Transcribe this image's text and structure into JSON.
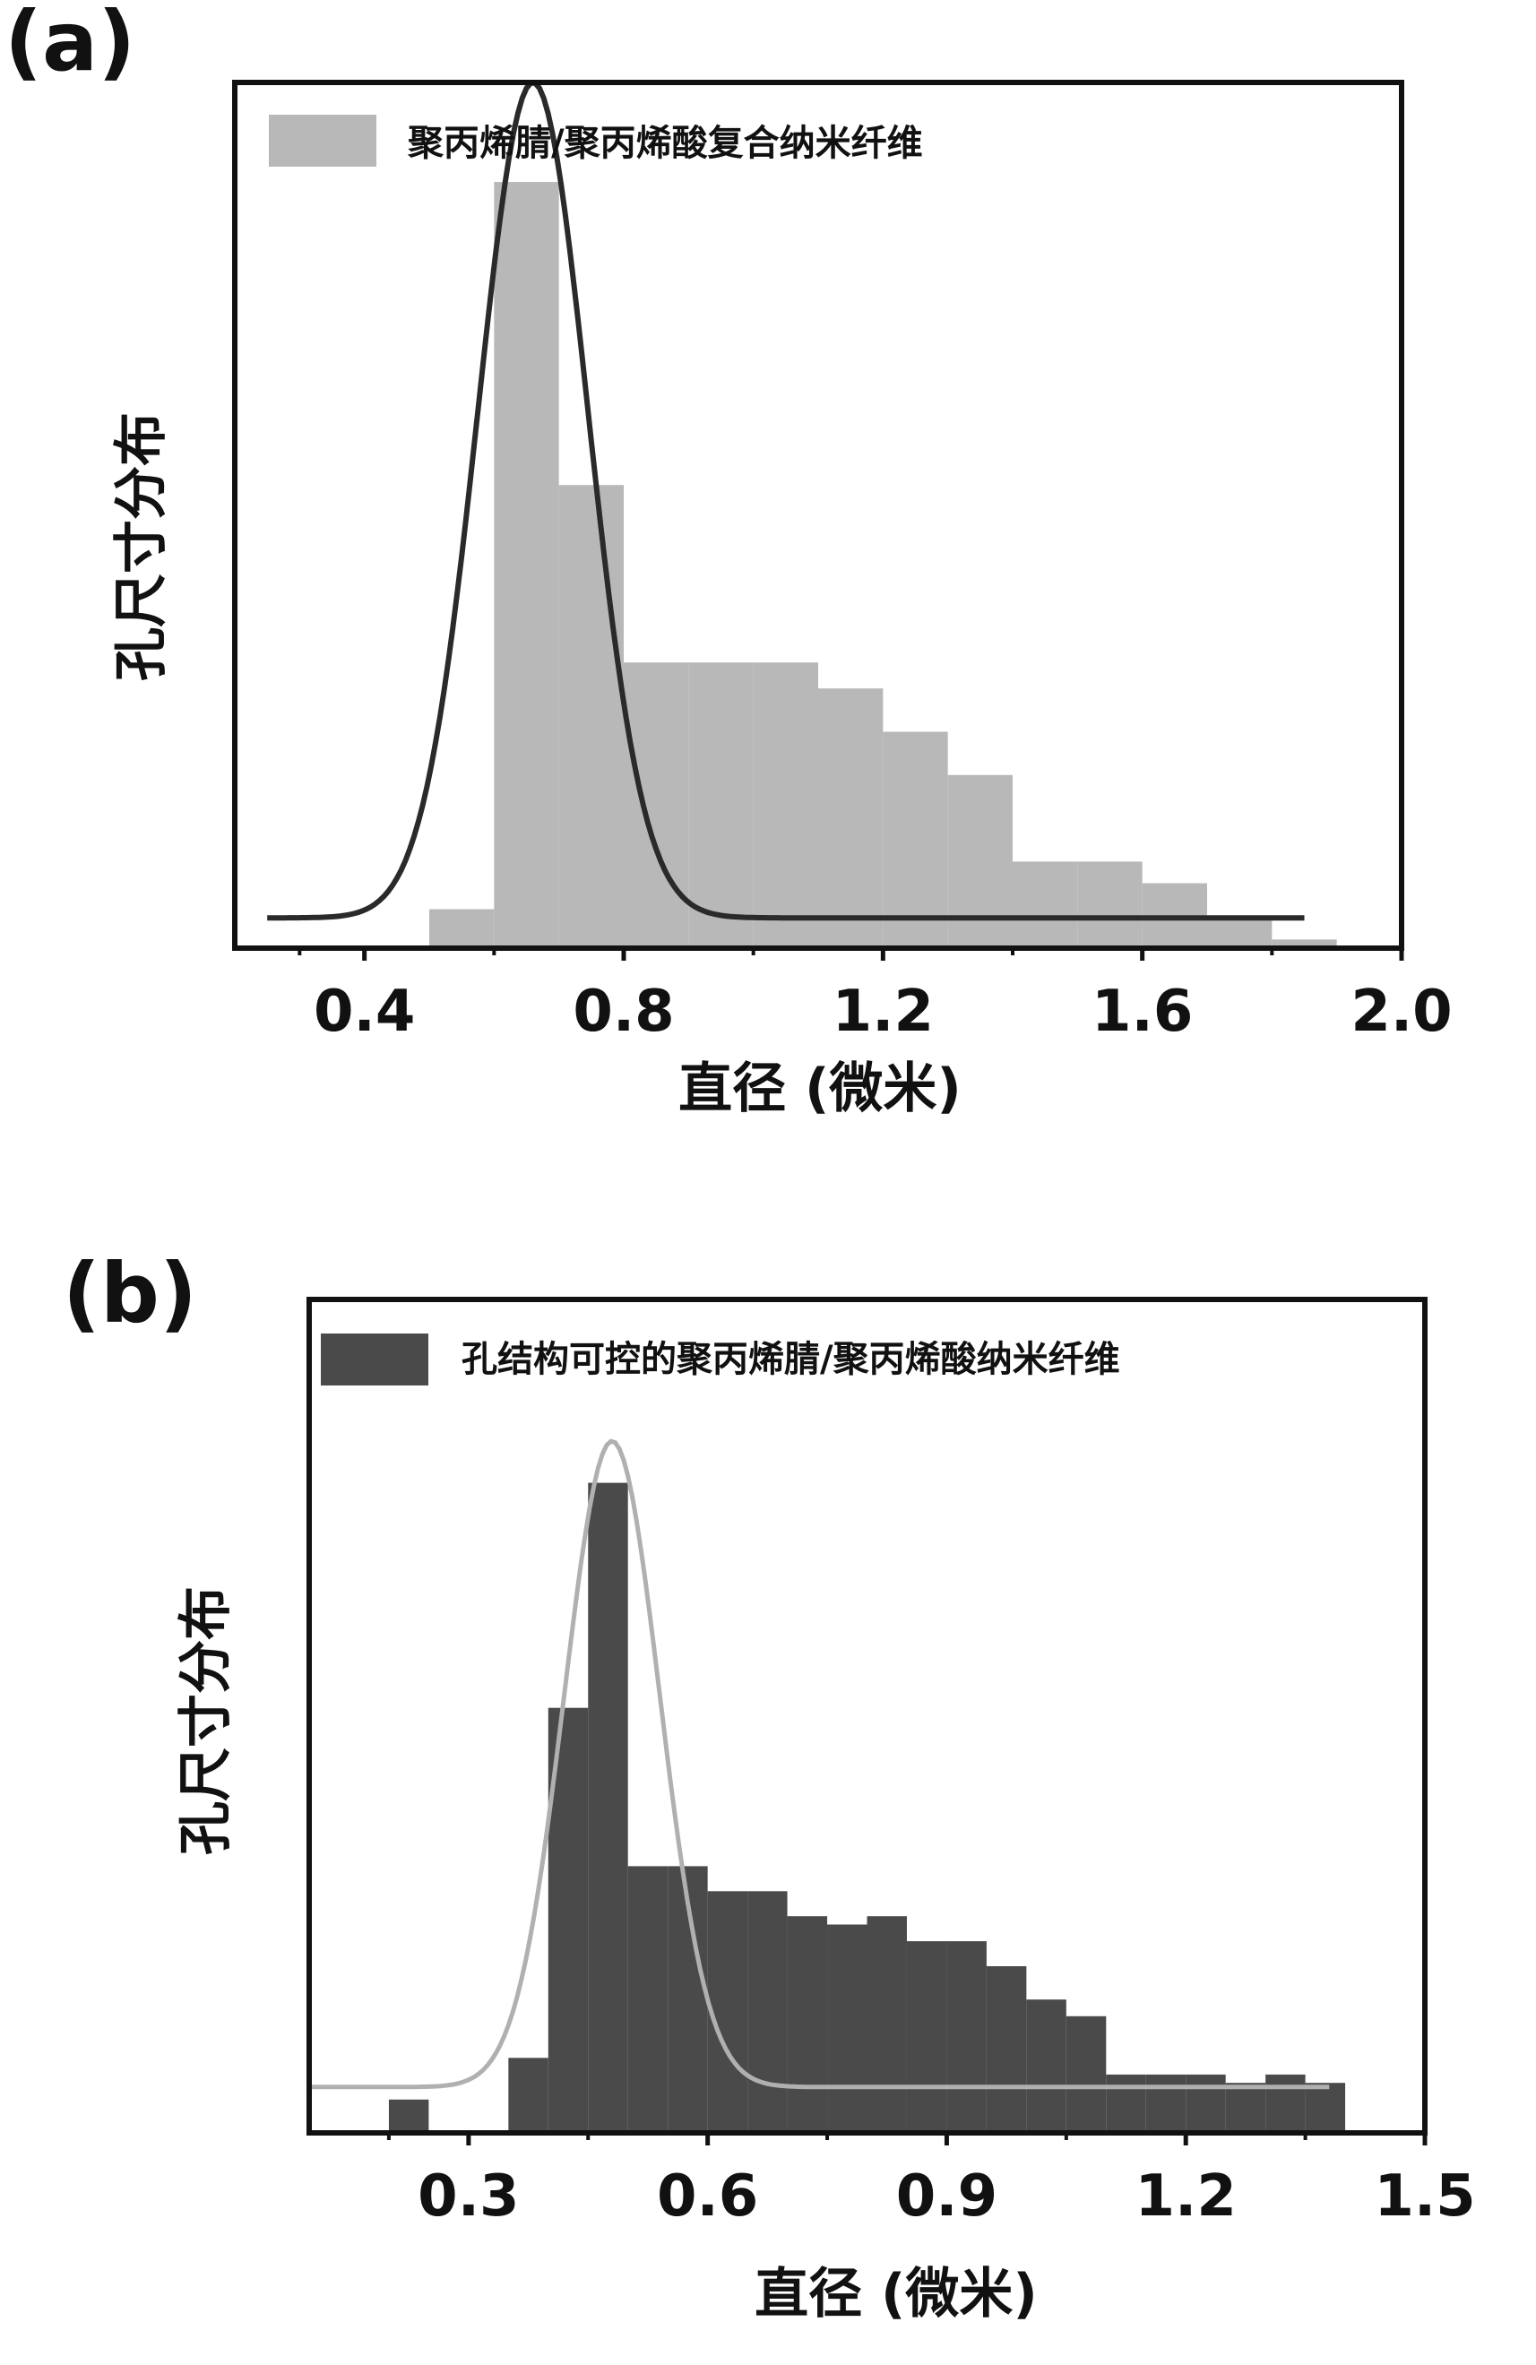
{
  "chart_data": [
    {
      "type": "bar",
      "panel_label": "(a)",
      "xlabel": "直径 (微米)",
      "ylabel": "孔尺寸分布",
      "xlim": [
        0.2,
        2.0
      ],
      "ylim": [
        0,
        1.0
      ],
      "xticks": [
        "0.4",
        "0.8",
        "1.2",
        "1.6",
        "2.0"
      ],
      "xtick_values": [
        0.4,
        0.8,
        1.2,
        1.6,
        2.0
      ],
      "legend": {
        "label": "聚丙烯腈/聚丙烯酸复合纳米纤维",
        "position": "top-left"
      },
      "colors": {
        "bars": "#b8b8b8",
        "curve": "#2a2a2a",
        "frame": "#111111"
      },
      "series": [
        {
          "kind": "histogram",
          "bins": [
            [
              0.5,
              0.6,
              0.045
            ],
            [
              0.6,
              0.7,
              0.885
            ],
            [
              0.7,
              0.8,
              0.535
            ],
            [
              0.8,
              0.9,
              0.33
            ],
            [
              0.9,
              1.0,
              0.33
            ],
            [
              1.0,
              1.1,
              0.33
            ],
            [
              1.1,
              1.2,
              0.3
            ],
            [
              1.2,
              1.3,
              0.25
            ],
            [
              1.3,
              1.4,
              0.2
            ],
            [
              1.4,
              1.5,
              0.1
            ],
            [
              1.5,
              1.6,
              0.1
            ],
            [
              1.6,
              1.7,
              0.075
            ],
            [
              1.7,
              1.8,
              0.035
            ],
            [
              1.8,
              1.9,
              0.01
            ]
          ]
        },
        {
          "kind": "gaussian",
          "mean": 0.66,
          "sigma": 0.085,
          "peak": 1.0,
          "baseline": 0.035,
          "xrange": [
            0.25,
            1.85
          ]
        }
      ]
    },
    {
      "type": "bar",
      "panel_label": "(b)",
      "xlabel": "直径 (微米)",
      "ylabel": "孔尺寸分布",
      "xlim": [
        0.1,
        1.5
      ],
      "ylim": [
        0,
        1.0
      ],
      "xticks": [
        "0.3",
        "0.6",
        "0.9",
        "1.2",
        "1.5"
      ],
      "xtick_values": [
        0.3,
        0.6,
        0.9,
        1.2,
        1.5
      ],
      "legend": {
        "label": "孔结构可控的聚丙烯腈/聚丙烯酸纳米纤维",
        "position": "top-left"
      },
      "colors": {
        "bars": "#4a4a4a",
        "curve": "#b0b0b0",
        "frame": "#111111"
      },
      "series": [
        {
          "kind": "histogram",
          "bins": [
            [
              0.2,
              0.25,
              0.04
            ],
            [
              0.35,
              0.4,
              0.09
            ],
            [
              0.4,
              0.45,
              0.51
            ],
            [
              0.45,
              0.5,
              0.78
            ],
            [
              0.5,
              0.55,
              0.32
            ],
            [
              0.55,
              0.6,
              0.32
            ],
            [
              0.6,
              0.65,
              0.29
            ],
            [
              0.65,
              0.7,
              0.29
            ],
            [
              0.7,
              0.75,
              0.26
            ],
            [
              0.75,
              0.8,
              0.25
            ],
            [
              0.8,
              0.85,
              0.26
            ],
            [
              0.85,
              0.9,
              0.23
            ],
            [
              0.9,
              0.95,
              0.23
            ],
            [
              0.95,
              1.0,
              0.2
            ],
            [
              1.0,
              1.05,
              0.16
            ],
            [
              1.05,
              1.1,
              0.14
            ],
            [
              1.1,
              1.15,
              0.07
            ],
            [
              1.15,
              1.2,
              0.07
            ],
            [
              1.2,
              1.25,
              0.07
            ],
            [
              1.25,
              1.3,
              0.06
            ],
            [
              1.3,
              1.35,
              0.07
            ],
            [
              1.35,
              1.4,
              0.06
            ]
          ]
        },
        {
          "kind": "gaussian",
          "mean": 0.48,
          "sigma": 0.06,
          "peak": 0.83,
          "baseline": 0.055,
          "xrange": [
            0.1,
            1.38
          ]
        }
      ]
    }
  ]
}
